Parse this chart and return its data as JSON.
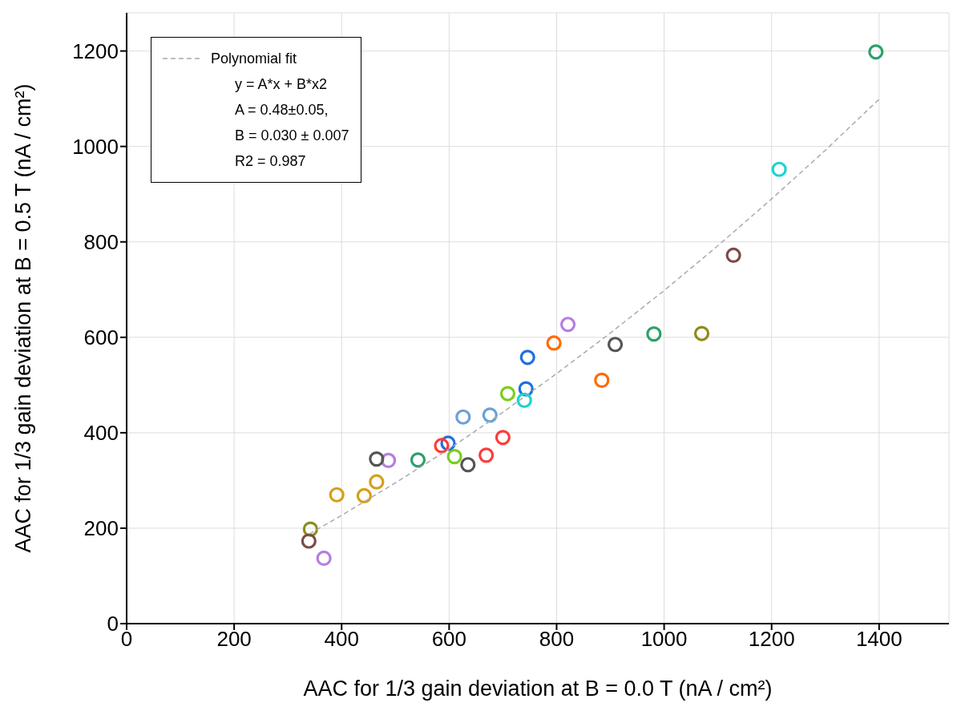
{
  "chart_data": {
    "type": "scatter",
    "xlabel": "AAC for 1/3 gain deviation at B = 0.0 T (nA / cm²)",
    "ylabel": "AAC for 1/3 gain deviation at B = 0.5 T (nA / cm²)",
    "xlim": [
      0,
      1530
    ],
    "ylim": [
      0,
      1280
    ],
    "xticks": [
      0,
      200,
      400,
      600,
      800,
      1000,
      1200,
      1400
    ],
    "yticks": [
      0,
      200,
      400,
      600,
      800,
      1000,
      1200
    ],
    "grid": true,
    "legend": "top left",
    "marker": "circle",
    "annotations": [
      "y = A*x + B*x2",
      "A = 0.48±0.05,",
      "B = 0.030 ± 0.007",
      "R2 = 0.987"
    ],
    "series": [
      {
        "x": [
          1394,
          1214,
          1129,
          1070,
          981,
          909,
          884,
          821,
          795,
          746,
          743,
          740,
          709,
          676,
          626,
          700,
          669,
          635,
          610,
          598,
          586,
          542,
          487,
          465,
          465,
          442,
          391,
          342,
          339,
          367
        ],
        "values": [
          1198,
          952,
          772,
          608,
          607,
          585,
          510,
          627,
          588,
          558,
          492,
          468,
          482,
          437,
          433,
          390,
          353,
          333,
          350,
          378,
          373,
          343,
          342,
          345,
          297,
          268,
          270,
          198,
          173,
          137
        ],
        "colors": [
          "#2ca06a",
          "#19d3d3",
          "#7b4a4a",
          "#8c8c1a",
          "#2ca06a",
          "#555555",
          "#ff6a00",
          "#b57de0",
          "#ff6a00",
          "#1f6fde",
          "#1f6fde",
          "#19d3d3",
          "#7ccd1e",
          "#6aa1d6",
          "#6aa1d6",
          "#ff3b3b",
          "#ff3b3b",
          "#555555",
          "#7ccd1e",
          "#1f6fde",
          "#ff3b3b",
          "#2ca06a",
          "#b57de0",
          "#555555",
          "#d4a017",
          "#d4a017",
          "#d4a017",
          "#8c8c1a",
          "#7b4a4a",
          "#b57de0"
        ]
      },
      {
        "type": "line",
        "name": "Polynomial fit",
        "color": "#aaaaaa",
        "line_style": "dashed",
        "marker": "none",
        "x": [
          340,
          400,
          500,
          600,
          700,
          800,
          900,
          1000,
          1100,
          1200,
          1300,
          1400
        ],
        "values": [
          188,
          227,
          295,
          366,
          443,
          524,
          609,
          698,
          792,
          890,
          992,
          1099
        ]
      }
    ]
  }
}
